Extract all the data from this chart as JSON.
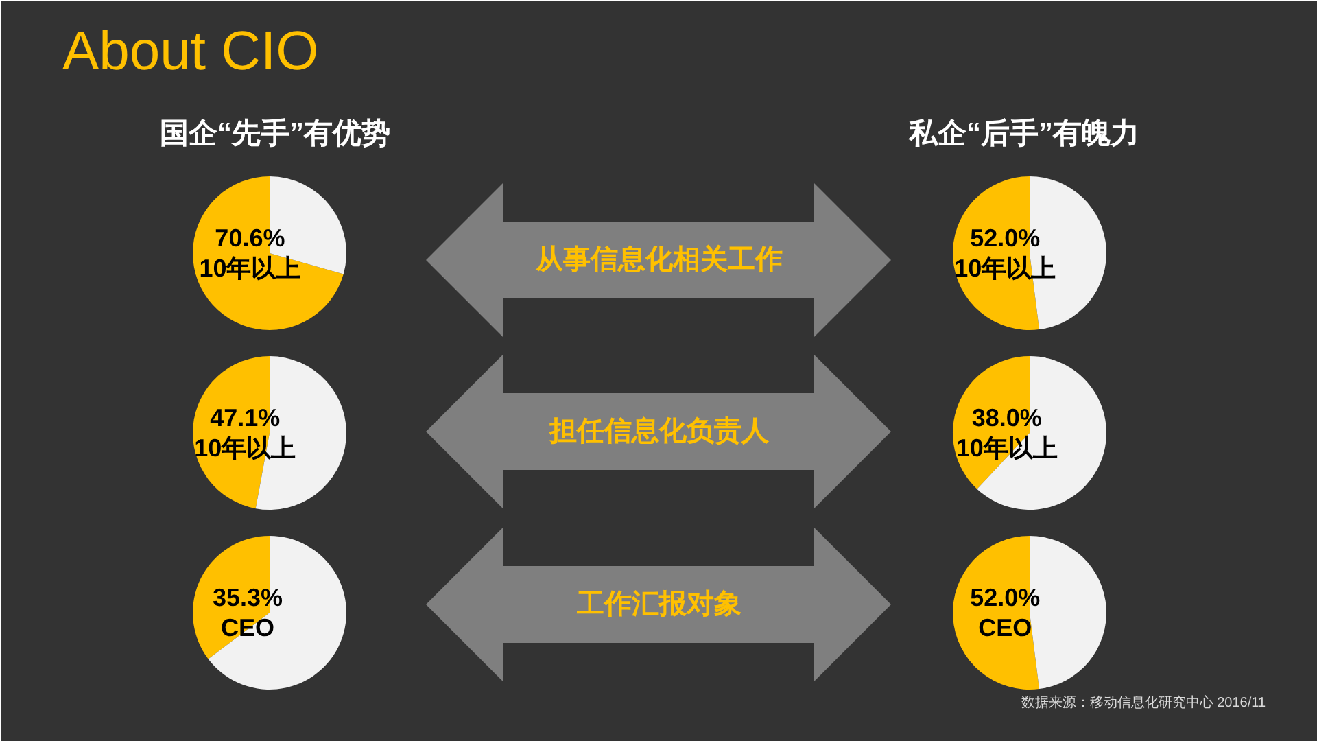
{
  "chart_data": [
    {
      "type": "pie",
      "title": "About CIO",
      "subtitle": "国企“先手”有优势",
      "categories": [
        "10年以上",
        null
      ],
      "values": [
        70.6,
        29.4
      ],
      "value_labels": [
        "70.6%",
        null
      ],
      "colors": [
        "#ffc000",
        "#f2f2f2"
      ],
      "annotations": [
        "从事信息化相关工作"
      ]
    },
    {
      "type": "pie",
      "subtitle": "私企“后手”有魄力",
      "categories": [
        "10年以上",
        null
      ],
      "values": [
        52.0,
        48.0
      ],
      "value_labels": [
        "52.0%",
        null
      ],
      "colors": [
        "#ffc000",
        "#f2f2f2"
      ]
    },
    {
      "type": "pie",
      "categories": [
        "10年以上",
        null
      ],
      "values": [
        47.1,
        52.9
      ],
      "value_labels": [
        "47.1%",
        null
      ],
      "colors": [
        "#ffc000",
        "#f2f2f2"
      ],
      "annotations": [
        "担任信息化负责人"
      ]
    },
    {
      "type": "pie",
      "categories": [
        "10年以上",
        null
      ],
      "values": [
        38.0,
        62.0
      ],
      "value_labels": [
        "38.0%",
        null
      ],
      "colors": [
        "#ffc000",
        "#f2f2f2"
      ]
    },
    {
      "type": "pie",
      "categories": [
        "CEO",
        null
      ],
      "values": [
        35.3,
        64.7
      ],
      "value_labels": [
        "35.3%",
        null
      ],
      "colors": [
        "#ffc000",
        "#f2f2f2"
      ],
      "annotations": [
        "工作汇报对象"
      ]
    },
    {
      "type": "pie",
      "categories": [
        "CEO",
        null
      ],
      "values": [
        52.0,
        48.0
      ],
      "value_labels": [
        "52.0%",
        null
      ],
      "colors": [
        "#ffc000",
        "#f2f2f2"
      ],
      "annotations": [
        "数据来源：移动信息化研究中心 2016/11"
      ]
    }
  ]
}
